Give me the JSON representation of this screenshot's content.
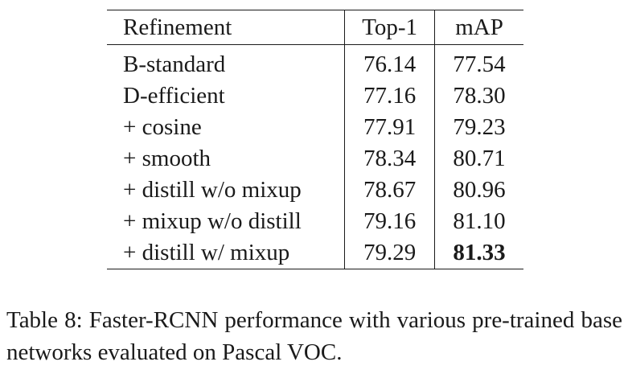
{
  "table": {
    "headers": {
      "refinement": "Refinement",
      "top1": "Top-1",
      "map": "mAP"
    },
    "rows": [
      {
        "refinement": "B-standard",
        "top1": "76.14",
        "map": "77.54"
      },
      {
        "refinement": "D-efficient",
        "top1": "77.16",
        "map": "78.30"
      },
      {
        "refinement": "+ cosine",
        "top1": "77.91",
        "map": "79.23"
      },
      {
        "refinement": "+ smooth",
        "top1": "78.34",
        "map": "80.71"
      },
      {
        "refinement": "+ distill w/o mixup",
        "top1": "78.67",
        "map": "80.96"
      },
      {
        "refinement": "+ mixup w/o distill",
        "top1": "79.16",
        "map": "81.10"
      },
      {
        "refinement": "+ distill w/ mixup",
        "top1": "79.29",
        "map": "81.33"
      }
    ]
  },
  "caption": {
    "label": "Table 8:",
    "text": "Faster-RCNN performance with various pre-trained base networks evaluated on Pascal VOC."
  }
}
